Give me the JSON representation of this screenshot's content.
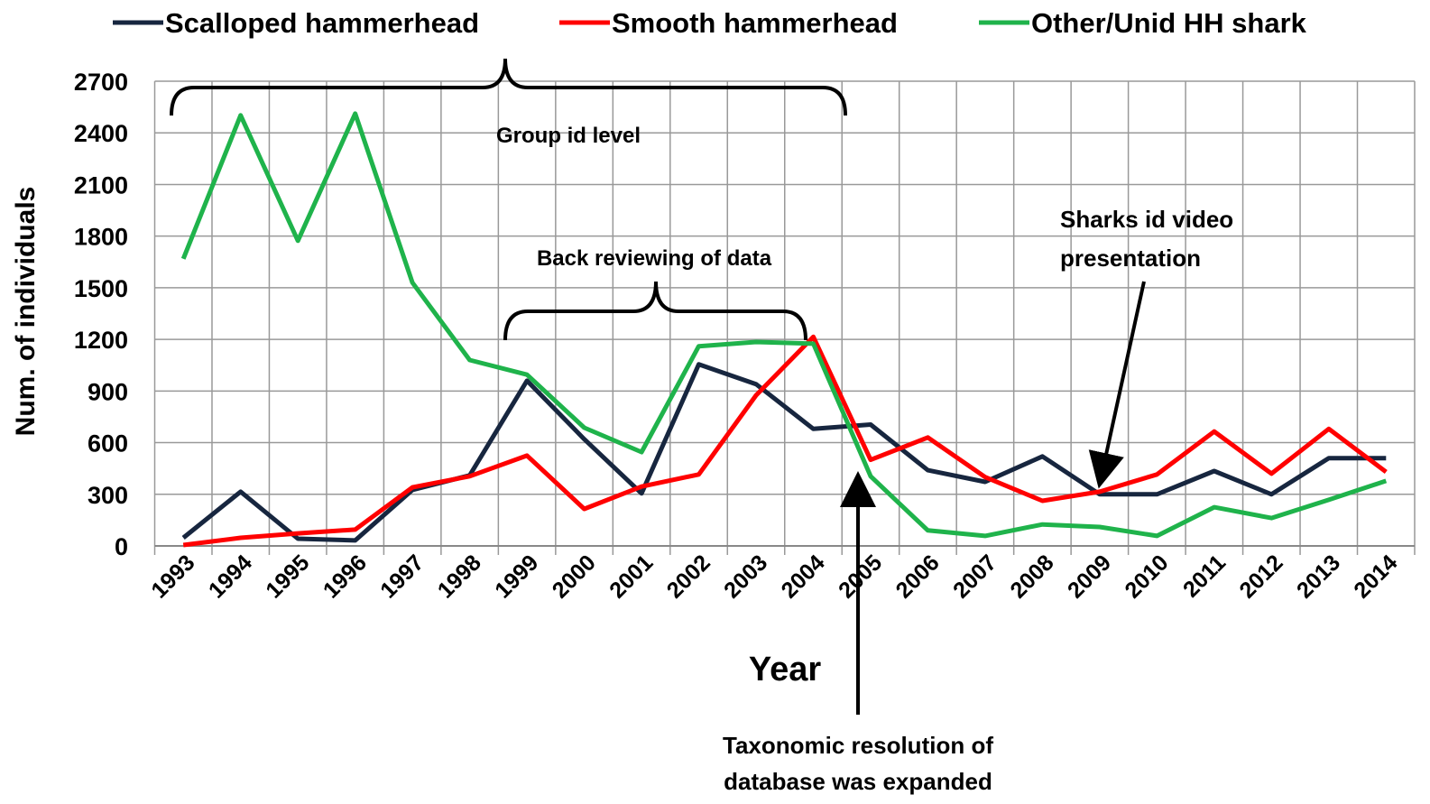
{
  "chart_data": {
    "type": "line",
    "x_label": "Year",
    "y_label": "Num. of individuals",
    "categories": [
      "1993",
      "1994",
      "1995",
      "1996",
      "1997",
      "1998",
      "1999",
      "2000",
      "2001",
      "2002",
      "2003",
      "2004",
      "2005",
      "2006",
      "2007",
      "2008",
      "2009",
      "2010",
      "2011",
      "2012",
      "2013",
      "2014"
    ],
    "series": [
      {
        "name": "Scalloped hammerhead",
        "color": "#17263f",
        "values": [
          47,
          315,
          42,
          32,
          325,
          410,
          960,
          620,
          305,
          1055,
          940,
          680,
          705,
          440,
          372,
          520,
          300,
          300,
          435,
          300,
          510,
          510
        ]
      },
      {
        "name": "Smooth hammerhead",
        "color": "#ff0000",
        "values": [
          5,
          47,
          73,
          95,
          340,
          405,
          525,
          215,
          345,
          415,
          875,
          1215,
          500,
          630,
          400,
          262,
          315,
          415,
          665,
          420,
          680,
          430
        ]
      },
      {
        "name": "Other/Unid HH shark",
        "color": "#1fb34b",
        "values": [
          1668,
          2502,
          1773,
          2512,
          1530,
          1080,
          995,
          687,
          545,
          1160,
          1185,
          1175,
          405,
          90,
          58,
          125,
          110,
          58,
          225,
          162,
          268,
          378
        ]
      }
    ],
    "ylim": [
      0,
      2700
    ],
    "yticks": [
      0,
      300,
      600,
      900,
      1200,
      1500,
      1800,
      2100,
      2400,
      2700
    ],
    "grid": true,
    "legend": "top",
    "annotations": [
      {
        "lines": [
          "Group id level"
        ]
      },
      {
        "lines": [
          "Back reviewing of data"
        ]
      },
      {
        "lines": [
          "Sharks id video",
          "presentation"
        ]
      },
      {
        "lines": [
          "Taxonomic resolution of",
          "database was expanded"
        ]
      }
    ]
  }
}
